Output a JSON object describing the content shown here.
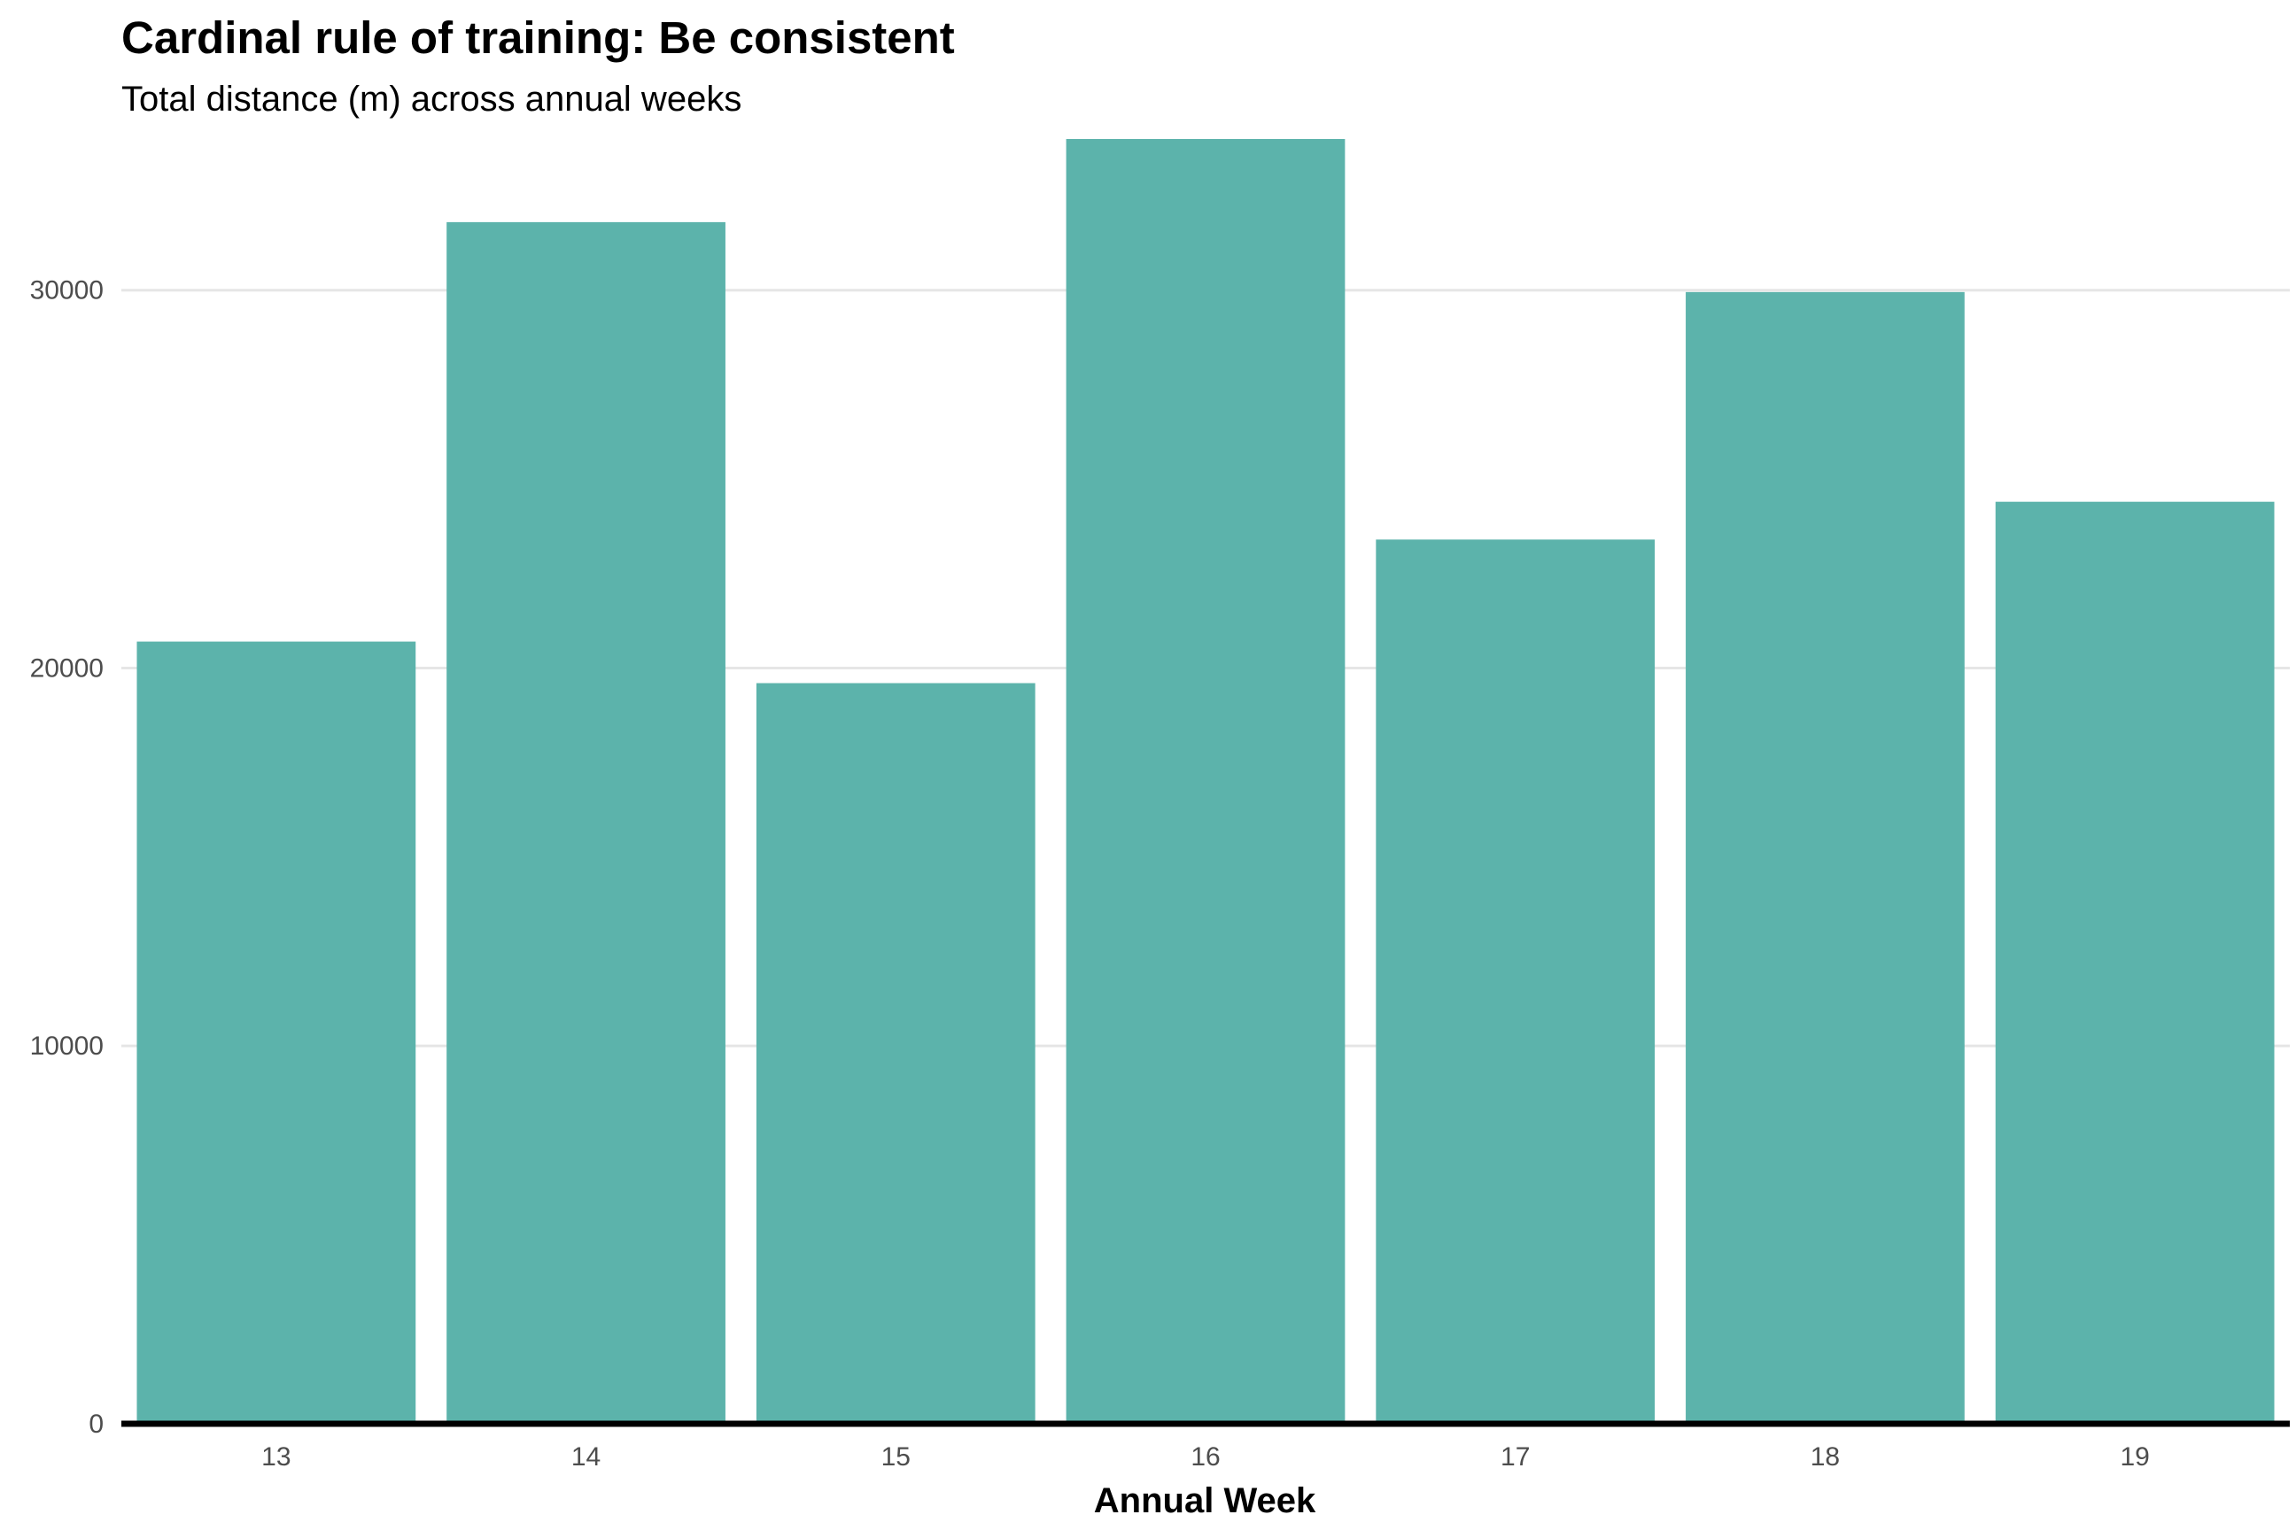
{
  "chart_data": {
    "type": "bar",
    "title": "Cardinal rule of training: Be consistent",
    "subtitle": "Total distance (m) across annual weeks",
    "xlabel": "Annual Week",
    "ylabel": "",
    "categories": [
      "13",
      "14",
      "15",
      "16",
      "17",
      "18",
      "19"
    ],
    "values": [
      20700,
      31800,
      19600,
      34000,
      23400,
      29950,
      24400
    ],
    "ylim": [
      0,
      34000
    ],
    "yticks": [
      0,
      10000,
      20000,
      30000
    ],
    "ytick_labels": [
      "0",
      "10000",
      "20000",
      "30000"
    ],
    "grid": "horizontal major gridlines",
    "legend": "none",
    "colors": {
      "bar": "#5cb3ab",
      "grid": "#e6e6e6",
      "baseline": "#000000"
    }
  }
}
